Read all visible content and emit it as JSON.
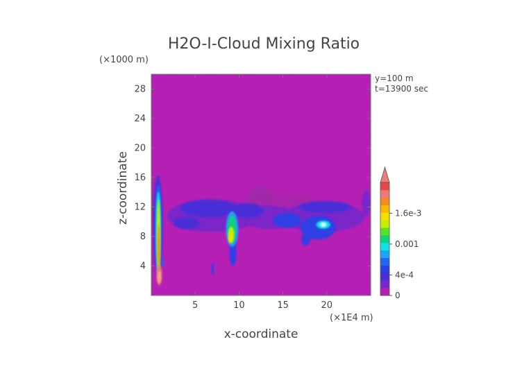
{
  "chart_data": {
    "type": "heatmap",
    "title": "H2O-I-Cloud Mixing Ratio",
    "xlabel": "x-coordinate",
    "ylabel": "z-coordinate",
    "x_unit": "(×1E4 m)",
    "y_unit": "(×1000 m)",
    "annotations": [
      "y=100 m",
      "t=13900 sec"
    ],
    "xlim": [
      0,
      25
    ],
    "ylim": [
      0,
      30
    ],
    "x_ticks": [
      5,
      10,
      15,
      20
    ],
    "y_ticks": [
      4,
      8,
      12,
      16,
      20,
      24,
      28
    ],
    "colorbar": {
      "ticks": [
        {
          "value": 0,
          "label": "0"
        },
        {
          "value": 0.0004,
          "label": "4e-4"
        },
        {
          "value": 0.001,
          "label": "0.001"
        },
        {
          "value": 0.0016,
          "label": "1.6e-3"
        }
      ],
      "max": 0.0022,
      "colors": [
        "#b41fb4",
        "#7a28c8",
        "#4a2ed8",
        "#2f3fe6",
        "#2364f0",
        "#1fa3f5",
        "#10e0e8",
        "#10d27a",
        "#58e22a",
        "#c4f000",
        "#f2e000",
        "#f7b800",
        "#f58a20",
        "#ef7878",
        "#e54646"
      ]
    },
    "features": [
      {
        "name": "cloud-layer",
        "x_range": [
          2.5,
          24.5
        ],
        "z_range": [
          8.5,
          13.2
        ],
        "level": "low"
      },
      {
        "name": "left-column",
        "x_range": [
          0.4,
          1.3
        ],
        "z_range": [
          1.0,
          16.0
        ],
        "level": "high"
      },
      {
        "name": "core-x9",
        "x_range": [
          8.8,
          9.6
        ],
        "z_range": [
          6.5,
          11.5
        ],
        "level": "medium"
      },
      {
        "name": "core-x20",
        "x_range": [
          19.0,
          20.5
        ],
        "z_range": [
          9.0,
          10.2
        ],
        "level": "low-medium"
      }
    ]
  }
}
